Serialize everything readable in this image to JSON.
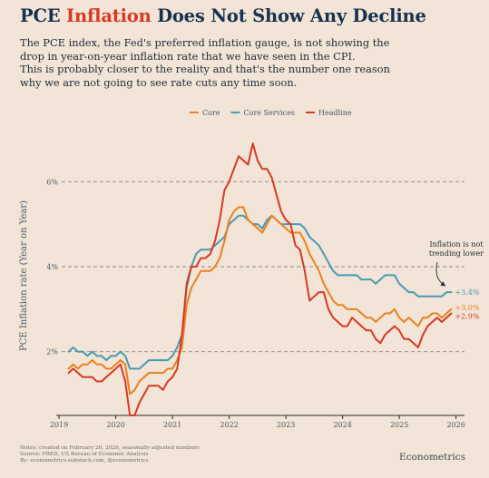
{
  "header": {
    "title_pre": "PCE ",
    "title_highlight": "Inflation",
    "title_post": " Does Not Show Any Decline",
    "subtitle_lines": [
      "The PCE index, the Fed's preferred inflation gauge, is not showing the",
      "drop in year-on-year inflation rate that we have seen in the CPI.",
      "This is probably closer to the reality and that's the number one reason",
      "why we are not going to see rate cuts any time soon."
    ]
  },
  "footer": {
    "notes": [
      "Notes: created on February 26, 2026, seasonally adjusted numbers",
      "Source: FRED, US Bureau of Economic Analysis",
      "By: econometrics.substack.com, @econometrics"
    ],
    "brand": "Econometrics"
  },
  "colors": {
    "background": "#f2e4d6",
    "core": "#e8821e",
    "core_services": "#4a9ab5",
    "headline": "#d63a23",
    "grid": "#8a8a8a",
    "title_highlight": "#d63a23"
  },
  "chart_data": {
    "type": "line",
    "ylabel": "PCE Inflation rate (Year on Year)",
    "xlabel": "",
    "x_ticks": [
      "2019",
      "2020",
      "2021",
      "2022",
      "2023",
      "2024",
      "2025",
      "2026"
    ],
    "y_ticks": [
      "2%",
      "4%",
      "6%"
    ],
    "ylim": [
      0.5,
      7.5
    ],
    "xlim": [
      2018.95,
      2026.15
    ],
    "grid": "horizontal dashed",
    "legend_position": "top-center",
    "annotation": {
      "text_lines": [
        "Inflation is not",
        "trending lower"
      ]
    },
    "x": [
      2019.167,
      2019.25,
      2019.333,
      2019.417,
      2019.5,
      2019.583,
      2019.667,
      2019.75,
      2019.833,
      2019.917,
      2020.0,
      2020.083,
      2020.167,
      2020.25,
      2020.333,
      2020.417,
      2020.5,
      2020.583,
      2020.667,
      2020.75,
      2020.833,
      2020.917,
      2021.0,
      2021.083,
      2021.167,
      2021.25,
      2021.333,
      2021.417,
      2021.5,
      2021.583,
      2021.667,
      2021.75,
      2021.833,
      2021.917,
      2022.0,
      2022.083,
      2022.167,
      2022.25,
      2022.333,
      2022.417,
      2022.5,
      2022.583,
      2022.667,
      2022.75,
      2022.833,
      2022.917,
      2023.0,
      2023.083,
      2023.167,
      2023.25,
      2023.333,
      2023.417,
      2023.5,
      2023.583,
      2023.667,
      2023.75,
      2023.833,
      2023.917,
      2024.0,
      2024.083,
      2024.167,
      2024.25,
      2024.333,
      2024.417,
      2024.5,
      2024.583,
      2024.667,
      2024.75,
      2024.833,
      2024.917,
      2025.0,
      2025.083,
      2025.167,
      2025.25,
      2025.333,
      2025.417,
      2025.5,
      2025.583,
      2025.667,
      2025.75,
      2025.833,
      2025.917
    ],
    "series": [
      {
        "name": "Core",
        "end_label": "+3.0%",
        "values": [
          1.6,
          1.7,
          1.6,
          1.7,
          1.7,
          1.8,
          1.7,
          1.7,
          1.6,
          1.6,
          1.7,
          1.8,
          1.7,
          1.0,
          1.1,
          1.3,
          1.4,
          1.5,
          1.5,
          1.5,
          1.5,
          1.6,
          1.6,
          1.8,
          2.1,
          3.1,
          3.5,
          3.7,
          3.9,
          3.9,
          3.9,
          4.0,
          4.2,
          4.6,
          5.1,
          5.3,
          5.4,
          5.4,
          5.1,
          5.0,
          4.9,
          4.8,
          5.0,
          5.2,
          5.1,
          5.0,
          4.9,
          4.8,
          4.8,
          4.8,
          4.6,
          4.3,
          4.1,
          3.9,
          3.6,
          3.4,
          3.2,
          3.1,
          3.1,
          3.0,
          3.0,
          3.0,
          2.9,
          2.8,
          2.8,
          2.7,
          2.8,
          2.9,
          2.9,
          3.0,
          2.8,
          2.7,
          2.8,
          2.7,
          2.6,
          2.8,
          2.8,
          2.9,
          2.9,
          2.8,
          2.9,
          3.0
        ]
      },
      {
        "name": "Core Services",
        "end_label": "+3.4%",
        "values": [
          2.0,
          2.1,
          2.0,
          2.0,
          1.9,
          2.0,
          1.9,
          1.9,
          1.8,
          1.9,
          1.9,
          2.0,
          1.9,
          1.6,
          1.6,
          1.6,
          1.7,
          1.8,
          1.8,
          1.8,
          1.8,
          1.8,
          1.9,
          2.1,
          2.4,
          3.5,
          4.0,
          4.3,
          4.4,
          4.4,
          4.4,
          4.5,
          4.6,
          4.7,
          5.0,
          5.1,
          5.2,
          5.2,
          5.1,
          5.0,
          5.0,
          4.9,
          5.1,
          5.2,
          5.1,
          5.0,
          5.0,
          5.0,
          5.0,
          5.0,
          4.9,
          4.7,
          4.6,
          4.5,
          4.3,
          4.1,
          3.9,
          3.8,
          3.8,
          3.8,
          3.8,
          3.8,
          3.7,
          3.7,
          3.7,
          3.6,
          3.7,
          3.8,
          3.8,
          3.8,
          3.6,
          3.5,
          3.4,
          3.4,
          3.3,
          3.3,
          3.3,
          3.3,
          3.3,
          3.3,
          3.4,
          3.4
        ]
      },
      {
        "name": "Headline",
        "end_label": "+2.9%",
        "values": [
          1.5,
          1.6,
          1.5,
          1.4,
          1.4,
          1.4,
          1.3,
          1.3,
          1.4,
          1.5,
          1.6,
          1.7,
          1.3,
          0.5,
          0.5,
          0.8,
          1.0,
          1.2,
          1.2,
          1.2,
          1.1,
          1.3,
          1.4,
          1.6,
          2.4,
          3.6,
          4.0,
          4.0,
          4.2,
          4.2,
          4.3,
          4.6,
          5.1,
          5.8,
          6.0,
          6.3,
          6.6,
          6.5,
          6.4,
          6.9,
          6.5,
          6.3,
          6.3,
          6.1,
          5.7,
          5.3,
          5.1,
          5.0,
          4.5,
          4.4,
          3.9,
          3.2,
          3.3,
          3.4,
          3.4,
          3.0,
          2.8,
          2.7,
          2.6,
          2.6,
          2.8,
          2.7,
          2.6,
          2.5,
          2.5,
          2.3,
          2.2,
          2.4,
          2.5,
          2.6,
          2.5,
          2.3,
          2.3,
          2.2,
          2.1,
          2.4,
          2.6,
          2.7,
          2.8,
          2.7,
          2.8,
          2.9
        ]
      }
    ]
  }
}
